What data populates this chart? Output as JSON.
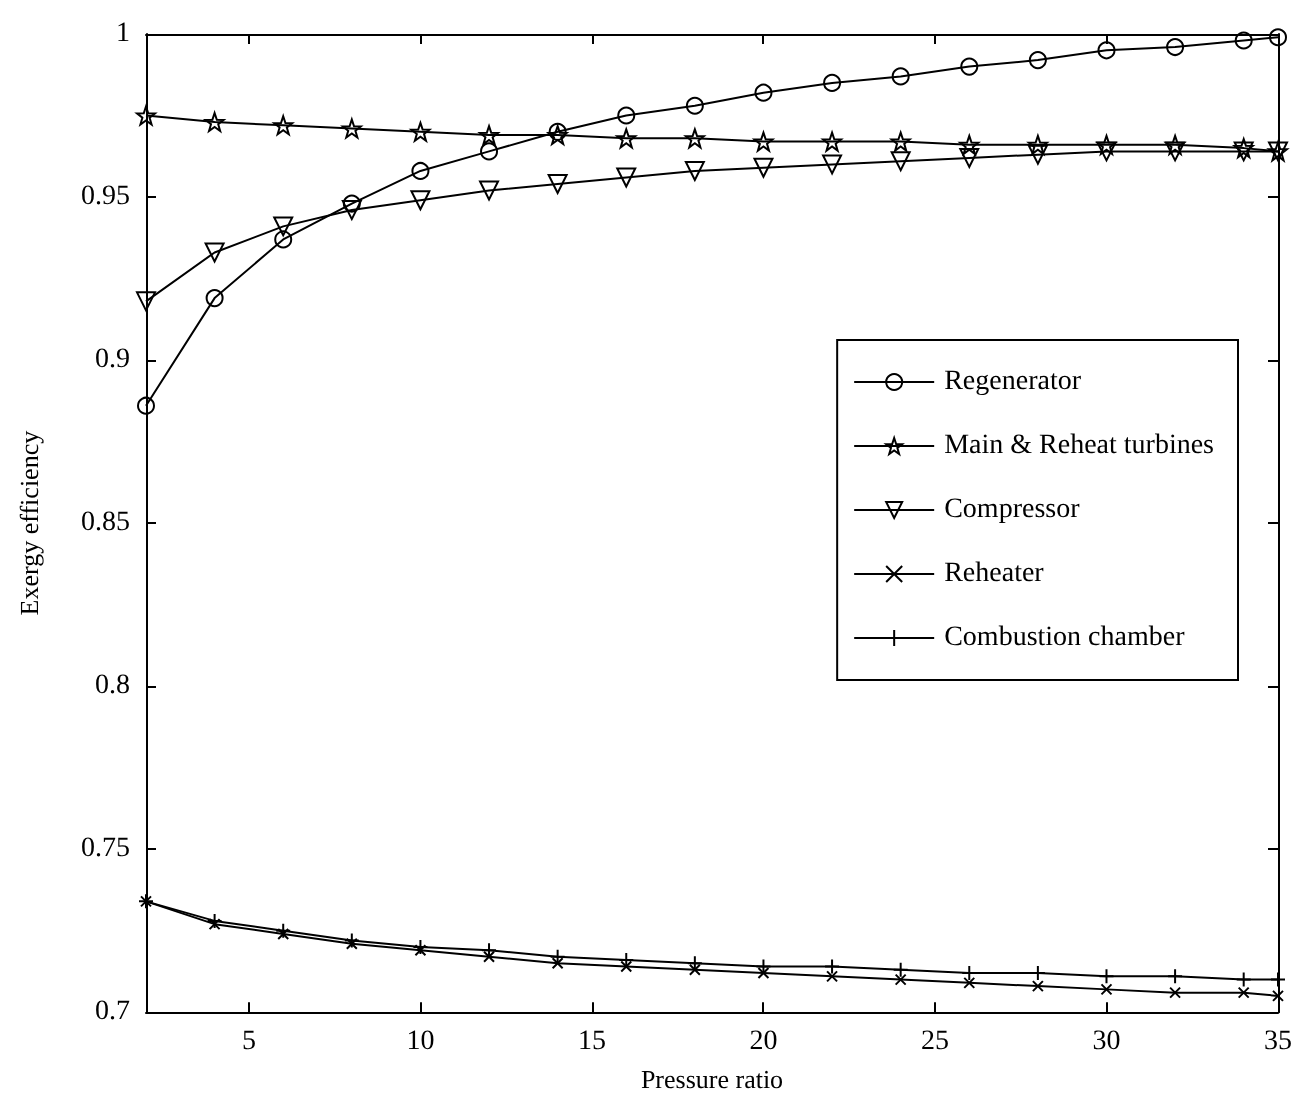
{
  "chart_data": {
    "type": "line",
    "xlabel": "Pressure ratio",
    "ylabel": "Exergy efficiency",
    "x": [
      2,
      4,
      6,
      8,
      10,
      12,
      14,
      16,
      18,
      20,
      22,
      24,
      26,
      28,
      30,
      32,
      34,
      35
    ],
    "series": [
      {
        "name": "Regenerator",
        "color": "#000000",
        "marker": "circle",
        "values": [
          0.886,
          0.919,
          0.937,
          0.948,
          0.958,
          0.964,
          0.97,
          0.975,
          0.978,
          0.982,
          0.985,
          0.987,
          0.99,
          0.992,
          0.995,
          0.996,
          0.998,
          0.999
        ]
      },
      {
        "name": "Main & Reheat turbines",
        "color": "#000000",
        "marker": "star",
        "values": [
          0.975,
          0.973,
          0.972,
          0.971,
          0.97,
          0.969,
          0.969,
          0.968,
          0.968,
          0.967,
          0.967,
          0.967,
          0.966,
          0.966,
          0.966,
          0.966,
          0.965,
          0.964
        ]
      },
      {
        "name": "Compressor",
        "color": "#000000",
        "marker": "triangle",
        "values": [
          0.918,
          0.933,
          0.941,
          0.946,
          0.949,
          0.952,
          0.954,
          0.956,
          0.958,
          0.959,
          0.96,
          0.961,
          0.962,
          0.963,
          0.964,
          0.964,
          0.964,
          0.964
        ]
      },
      {
        "name": "Reheater",
        "color": "#000000",
        "marker": "cross",
        "values": [
          0.734,
          0.727,
          0.724,
          0.721,
          0.719,
          0.717,
          0.715,
          0.714,
          0.713,
          0.712,
          0.711,
          0.71,
          0.709,
          0.708,
          0.707,
          0.706,
          0.706,
          0.705
        ]
      },
      {
        "name": "Combustion chamber",
        "color": "#000000",
        "marker": "plus",
        "values": [
          0.734,
          0.728,
          0.725,
          0.722,
          0.72,
          0.719,
          0.717,
          0.716,
          0.715,
          0.714,
          0.714,
          0.713,
          0.712,
          0.712,
          0.711,
          0.711,
          0.71,
          0.71
        ]
      }
    ],
    "xlim": [
      2,
      35
    ],
    "xticks": [
      5,
      10,
      15,
      20,
      25,
      30,
      35
    ],
    "ylim": [
      0.7,
      1
    ],
    "yticks": [
      0.7,
      0.75,
      0.8,
      0.85,
      0.9,
      0.95,
      1
    ],
    "grid": false,
    "legend": "right",
    "line_style": "solid"
  }
}
